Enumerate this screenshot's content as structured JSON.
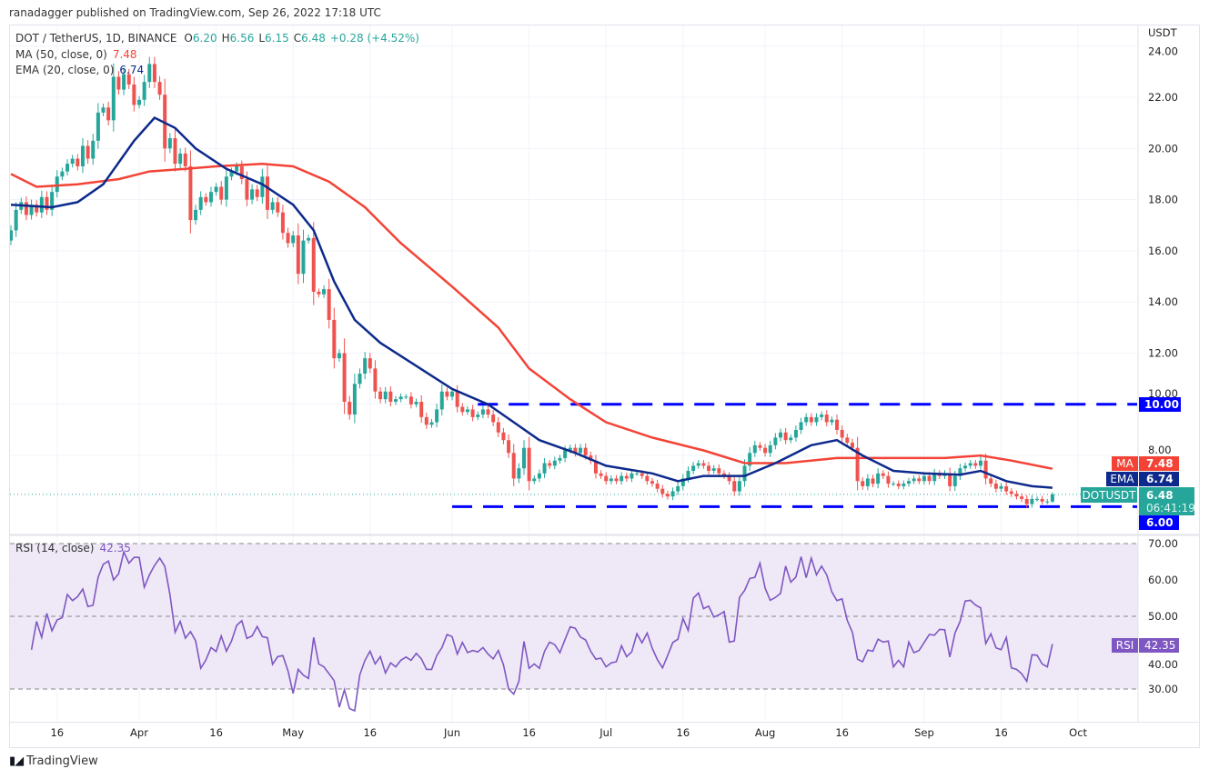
{
  "publisher": "ranadagger published on TradingView.com, Sep 26, 2022 17:18 UTC",
  "header": {
    "symbol": "DOT / TetherUS, 1D, BINANCE",
    "o_label": "O",
    "open": "6.20",
    "h_label": "H",
    "high": "6.56",
    "l_label": "L",
    "low": "6.15",
    "c_label": "C",
    "close": "6.48",
    "change": "+0.28 (+4.52%)",
    "ma_label": "MA (50, close, 0)",
    "ma_value": "7.48",
    "ema_label": "EMA (20, close, 0)",
    "ema_value": "6.74",
    "rsi_label": "RSI (14, close)",
    "rsi_value": "42.35"
  },
  "colors": {
    "up": "#26a69a",
    "down": "#ef5350",
    "ma": "#f44336",
    "ema": "#0d2a8c",
    "rsi": "#7e57c2",
    "level": "#0000ff",
    "rsi_band": "#ede7f6"
  },
  "price_axis": {
    "unit": "USDT",
    "ticks": [
      "24.00",
      "22.00",
      "20.00",
      "18.00",
      "16.00",
      "14.00",
      "12.00",
      "10.00",
      "8.00"
    ]
  },
  "rsi_axis": {
    "ticks": [
      "70.00",
      "60.00",
      "50.00",
      "40.00",
      "30.00"
    ]
  },
  "time_axis": {
    "ticks": [
      "16",
      "Apr",
      "16",
      "May",
      "16",
      "Jun",
      "16",
      "Jul",
      "16",
      "Aug",
      "16",
      "Sep",
      "16",
      "Oct"
    ]
  },
  "badges": {
    "ma_tag": "MA",
    "ma_value": "7.48",
    "ema_tag": "EMA",
    "ema_value": "6.74",
    "symbol_tag": "DOTUSDT",
    "price_value": "6.48",
    "countdown": "06:41:19",
    "support_value": "6.00",
    "resistance_value": "10.00",
    "rsi_tag": "RSI",
    "rsi_value": "42.35"
  },
  "footer": {
    "brand": "TradingView"
  },
  "chart_data": {
    "type": "candlestick",
    "start_date": "2022-03-07",
    "end_date": "2022-09-26",
    "first_open": 16.4,
    "close": [
      16.8,
      17.6,
      17.9,
      17.4,
      17.8,
      17.5,
      18.1,
      17.6,
      18.3,
      18.9,
      19.1,
      19.4,
      19.6,
      19.3,
      20.1,
      19.6,
      20.3,
      21.4,
      21.6,
      21.1,
      22.8,
      22.3,
      22.9,
      22.5,
      21.7,
      21.9,
      22.6,
      23.3,
      22.6,
      22.1,
      20.0,
      20.4,
      19.4,
      19.8,
      19.3,
      17.2,
      17.6,
      18.1,
      17.9,
      18.3,
      18.5,
      18.0,
      18.9,
      19.1,
      19.3,
      18.8,
      18.0,
      18.4,
      18.1,
      18.9,
      17.6,
      17.9,
      17.5,
      16.7,
      16.3,
      16.6,
      15.1,
      16.4,
      16.5,
      14.4,
      14.3,
      14.5,
      13.3,
      11.8,
      12.0,
      10.1,
      9.6,
      10.8,
      11.2,
      11.8,
      11.4,
      10.5,
      10.2,
      10.5,
      10.1,
      10.2,
      10.3,
      10.3,
      10.0,
      10.1,
      9.5,
      9.2,
      9.3,
      9.8,
      10.5,
      10.3,
      10.5,
      9.9,
      9.7,
      9.8,
      9.5,
      9.6,
      9.8,
      9.6,
      9.3,
      8.9,
      8.6,
      8.1,
      7.1,
      7.5,
      8.3,
      7.0,
      7.1,
      7.3,
      7.7,
      7.6,
      7.8,
      7.9,
      8.2,
      8.3,
      8.1,
      8.3,
      8.0,
      7.8,
      7.3,
      7.2,
      7.0,
      7.1,
      7.0,
      7.2,
      7.1,
      7.3,
      7.3,
      7.2,
      7.0,
      6.9,
      6.7,
      6.5,
      6.4,
      6.6,
      6.8,
      7.1,
      7.4,
      7.6,
      7.7,
      7.6,
      7.4,
      7.5,
      7.3,
      7.2,
      7.0,
      6.6,
      7.0,
      7.6,
      8.1,
      8.4,
      8.3,
      8.1,
      8.4,
      8.7,
      8.9,
      8.6,
      8.7,
      9.0,
      9.3,
      9.5,
      9.3,
      9.5,
      9.6,
      9.3,
      9.4,
      9.0,
      8.7,
      8.5,
      8.3,
      7.0,
      6.8,
      7.1,
      6.9,
      7.3,
      7.2,
      6.9,
      6.9,
      6.8,
      6.9,
      7.0,
      7.1,
      7.0,
      7.2,
      7.0,
      7.3,
      7.2,
      7.3,
      6.8,
      7.2,
      7.5,
      7.6,
      7.7,
      7.6,
      7.8,
      7.1,
      6.9,
      6.7,
      6.8,
      6.6,
      6.5,
      6.4,
      6.3,
      6.1,
      6.3,
      6.3,
      6.2,
      6.2,
      6.48
    ],
    "ma50": [
      [
        "2022-03-07",
        19.0
      ],
      [
        "2022-03-12",
        18.5
      ],
      [
        "2022-03-20",
        18.6
      ],
      [
        "2022-03-28",
        18.8
      ],
      [
        "2022-04-03",
        19.1
      ],
      [
        "2022-04-10",
        19.2
      ],
      [
        "2022-04-16",
        19.3
      ],
      [
        "2022-04-25",
        19.4
      ],
      [
        "2022-05-01",
        19.3
      ],
      [
        "2022-05-08",
        18.7
      ],
      [
        "2022-05-15",
        17.7
      ],
      [
        "2022-05-22",
        16.3
      ],
      [
        "2022-06-01",
        14.6
      ],
      [
        "2022-06-10",
        13.0
      ],
      [
        "2022-06-16",
        11.4
      ],
      [
        "2022-06-24",
        10.2
      ],
      [
        "2022-07-01",
        9.3
      ],
      [
        "2022-07-10",
        8.7
      ],
      [
        "2022-07-20",
        8.2
      ],
      [
        "2022-07-28",
        7.7
      ],
      [
        "2022-08-05",
        7.7
      ],
      [
        "2022-08-15",
        7.9
      ],
      [
        "2022-08-25",
        7.9
      ],
      [
        "2022-09-05",
        7.9
      ],
      [
        "2022-09-12",
        8.0
      ],
      [
        "2022-09-18",
        7.8
      ],
      [
        "2022-09-26",
        7.48
      ]
    ],
    "ema20": [
      [
        "2022-03-07",
        17.8
      ],
      [
        "2022-03-15",
        17.7
      ],
      [
        "2022-03-20",
        17.9
      ],
      [
        "2022-03-25",
        18.6
      ],
      [
        "2022-03-31",
        20.3
      ],
      [
        "2022-04-04",
        21.2
      ],
      [
        "2022-04-08",
        20.8
      ],
      [
        "2022-04-12",
        20.0
      ],
      [
        "2022-04-18",
        19.2
      ],
      [
        "2022-04-25",
        18.6
      ],
      [
        "2022-05-01",
        17.8
      ],
      [
        "2022-05-05",
        16.8
      ],
      [
        "2022-05-09",
        14.8
      ],
      [
        "2022-05-13",
        13.3
      ],
      [
        "2022-05-18",
        12.4
      ],
      [
        "2022-05-25",
        11.5
      ],
      [
        "2022-06-01",
        10.6
      ],
      [
        "2022-06-08",
        10.0
      ],
      [
        "2022-06-13",
        9.3
      ],
      [
        "2022-06-18",
        8.6
      ],
      [
        "2022-06-25",
        8.1
      ],
      [
        "2022-07-01",
        7.6
      ],
      [
        "2022-07-10",
        7.3
      ],
      [
        "2022-07-15",
        7.0
      ],
      [
        "2022-07-20",
        7.2
      ],
      [
        "2022-07-28",
        7.2
      ],
      [
        "2022-08-03",
        7.7
      ],
      [
        "2022-08-10",
        8.4
      ],
      [
        "2022-08-15",
        8.6
      ],
      [
        "2022-08-20",
        8.0
      ],
      [
        "2022-08-26",
        7.4
      ],
      [
        "2022-09-01",
        7.3
      ],
      [
        "2022-09-08",
        7.25
      ],
      [
        "2022-09-12",
        7.4
      ],
      [
        "2022-09-17",
        7.0
      ],
      [
        "2022-09-22",
        6.8
      ],
      [
        "2022-09-26",
        6.74
      ]
    ],
    "rsi": [
      40.8,
      48.6,
      44.2,
      50.8,
      46,
      49,
      49.6,
      56,
      54.3,
      55.4,
      57.5,
      52.7,
      53,
      60.8,
      64.3,
      65.2,
      60,
      61.7,
      67.7,
      64.6,
      66.2,
      66.2,
      58,
      61.4,
      64,
      66,
      63.7,
      56,
      45.6,
      48.6,
      44,
      45.8,
      43.3,
      35.7,
      38,
      41.4,
      40.3,
      44.6,
      40.4,
      43.2,
      47.5,
      48.8,
      43.9,
      44.6,
      47.2,
      44.4,
      44.1,
      36.8,
      38.9,
      39.2,
      35,
      28.8,
      35.4,
      33.8,
      32.9,
      44.2,
      36.9,
      36.1,
      34.2,
      32.3,
      25,
      29.8,
      24.6,
      24,
      33.9,
      37.9,
      40.4,
      36.9,
      38.9,
      34.4,
      37.2,
      36.1,
      37.9,
      38.8,
      37.9,
      39.8,
      38.3,
      35.4,
      35.4,
      39.2,
      41.4,
      45,
      44.4,
      39.6,
      42.8,
      40,
      40.6,
      40.2,
      41.4,
      39.6,
      38.3,
      40.6,
      36.7,
      30,
      28.6,
      32.1,
      43.1,
      35.7,
      36.9,
      35.7,
      40.4,
      42.9,
      42.2,
      40,
      43.6,
      47.1,
      46.7,
      44.3,
      43.5,
      40.4,
      38.2,
      38.5,
      36.1,
      37.2,
      37.5,
      41.9,
      38.9,
      40.2,
      45.2,
      42.7,
      45.4,
      41.2,
      38.1,
      35.8,
      39.2,
      42.8,
      43.7,
      49.4,
      46.1,
      55,
      56.4,
      52.1,
      52.8,
      49.8,
      50.4,
      51.3,
      42.9,
      43.2,
      55.2,
      57.1,
      60.4,
      60.7,
      64.6,
      57.7,
      54.4,
      55.2,
      56.3,
      63.8,
      59.4,
      60.8,
      66.4,
      60.6,
      66,
      61.4,
      63.8,
      61.4,
      56.7,
      54.3,
      54.8,
      48.9,
      45.6,
      38.2,
      37.5,
      40.7,
      40.4,
      43.7,
      42.9,
      43.2,
      36.1,
      37.9,
      36.1,
      42.9,
      40,
      40.6,
      42.8,
      45,
      44.8,
      46.4,
      46.3,
      38.8,
      45.4,
      48.6,
      54.2,
      54.4,
      53.1,
      52.3,
      42.5,
      45.2,
      41.3,
      40.8,
      44.2,
      35.8,
      35.4,
      34.2,
      32.1,
      39.4,
      39.3,
      36.9,
      36.1,
      42.35
    ],
    "support": 6.0,
    "resistance": 10.0,
    "current_price": 6.48,
    "ylim": [
      5.5,
      24.2
    ],
    "rsi_levels": [
      70,
      50,
      30
    ],
    "rsi_ylim": [
      21,
      72
    ],
    "grid": true
  }
}
